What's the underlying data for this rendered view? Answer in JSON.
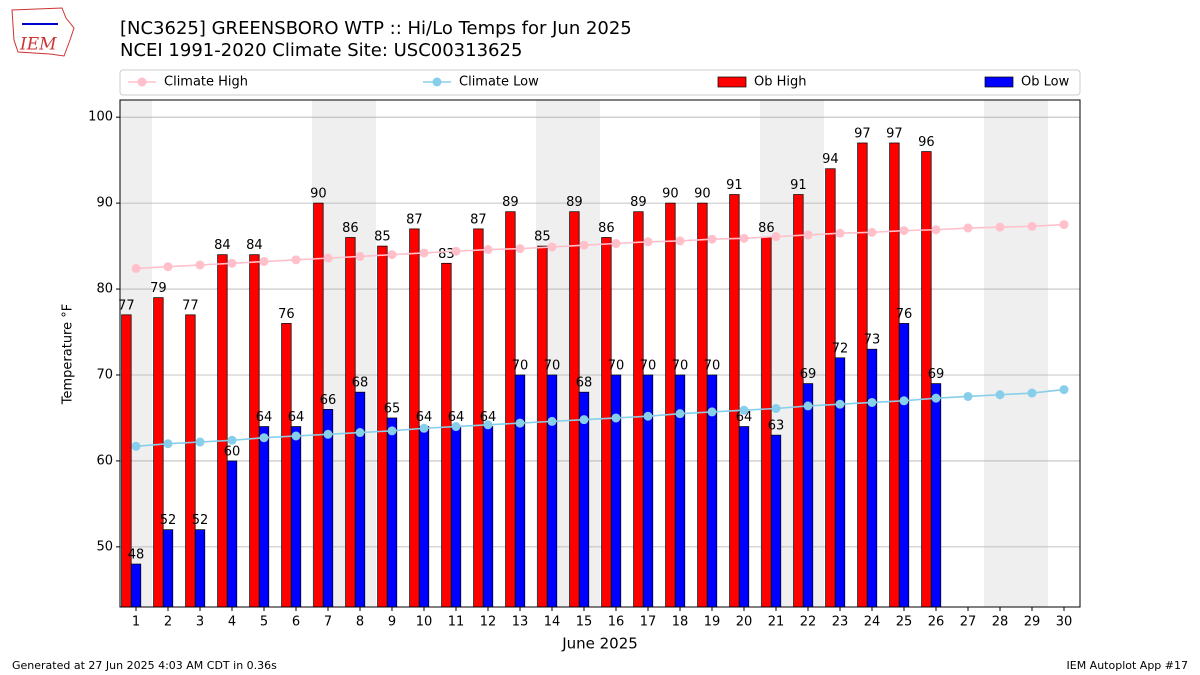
{
  "chart_data": {
    "type": "bar",
    "title": "[NC3625] GREENSBORO WTP :: Hi/Lo Temps for Jun 2025",
    "subtitle": "NCEI 1991-2020 Climate Site: USC00313625",
    "logo_text": "IEM",
    "xlabel": "June 2025",
    "ylabel": "Temperature °F",
    "footer_left": "Generated at 27 Jun 2025 4:03 AM CDT in 0.36s",
    "footer_right": "IEM Autoplot App #17",
    "categories": [
      "1",
      "2",
      "3",
      "4",
      "5",
      "6",
      "7",
      "8",
      "9",
      "10",
      "11",
      "12",
      "13",
      "14",
      "15",
      "16",
      "17",
      "18",
      "19",
      "20",
      "21",
      "22",
      "23",
      "24",
      "25",
      "26",
      "27",
      "28",
      "29",
      "30"
    ],
    "weekend_days": [
      1,
      7,
      8,
      14,
      15,
      21,
      22,
      28,
      29
    ],
    "series": [
      {
        "name": "Climate High",
        "type": "line",
        "color": "#ffc0cb",
        "values": [
          82.4,
          82.6,
          82.8,
          83.0,
          83.2,
          83.4,
          83.6,
          83.8,
          84.0,
          84.2,
          84.4,
          84.6,
          84.7,
          84.9,
          85.1,
          85.3,
          85.5,
          85.6,
          85.8,
          85.9,
          86.1,
          86.3,
          86.5,
          86.6,
          86.8,
          86.9,
          87.1,
          87.2,
          87.3,
          87.5
        ]
      },
      {
        "name": "Climate Low",
        "type": "line",
        "color": "#87ceeb",
        "values": [
          61.7,
          62.0,
          62.2,
          62.4,
          62.7,
          62.9,
          63.1,
          63.3,
          63.5,
          63.8,
          64.0,
          64.2,
          64.4,
          64.6,
          64.8,
          65.0,
          65.2,
          65.5,
          65.7,
          65.9,
          66.1,
          66.4,
          66.6,
          66.8,
          67.0,
          67.3,
          67.5,
          67.7,
          67.9,
          68.3
        ]
      },
      {
        "name": "Ob High",
        "type": "bar",
        "color": "#ff0000",
        "values": [
          77,
          79,
          77,
          84,
          84,
          76,
          90,
          86,
          85,
          87,
          83,
          87,
          89,
          85,
          89,
          86,
          89,
          90,
          90,
          91,
          86,
          91,
          94,
          97,
          97,
          96,
          null,
          null,
          null,
          null
        ]
      },
      {
        "name": "Ob Low",
        "type": "bar",
        "color": "#0000ff",
        "values": [
          48,
          52,
          52,
          60,
          64,
          64,
          66,
          68,
          65,
          64,
          64,
          64,
          70,
          70,
          68,
          70,
          70,
          70,
          70,
          64,
          63,
          69,
          72,
          73,
          76,
          69,
          null,
          null,
          null,
          null
        ]
      }
    ],
    "ylim": [
      43,
      102
    ],
    "yticks": [
      50,
      60,
      70,
      80,
      90,
      100
    ],
    "grid": true
  }
}
